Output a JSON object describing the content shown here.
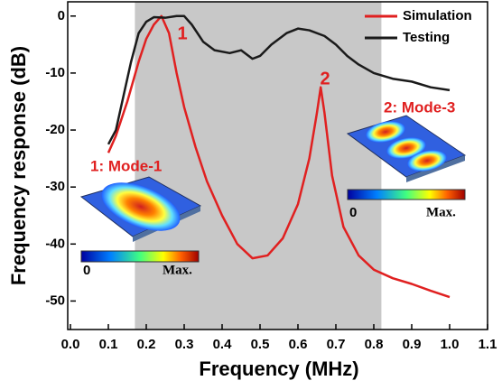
{
  "chart_data": {
    "type": "line",
    "x_label": "Frequency (MHz)",
    "y_label": "Frequency response (dB)",
    "xlim": [
      0,
      1.1
    ],
    "ylim": [
      -55,
      2.5
    ],
    "xticks": [
      {
        "value": 0,
        "label": "0.0"
      },
      0.1,
      0.2,
      0.3,
      0.4,
      0.5,
      0.6,
      0.7,
      0.8,
      0.9,
      {
        "value": 1,
        "label": "1.0"
      },
      1.1
    ],
    "yticks": [
      0,
      -10,
      -20,
      -30,
      -40,
      -50
    ],
    "shaded_region": [
      0.17,
      0.82
    ],
    "shaded_color": "#c8c8c8",
    "legend": "upper right",
    "series": [
      {
        "name": "Simulation",
        "color": "#e02020",
        "x": [
          0.1,
          0.12,
          0.15,
          0.18,
          0.2,
          0.22,
          0.24,
          0.26,
          0.28,
          0.3,
          0.33,
          0.36,
          0.4,
          0.44,
          0.48,
          0.52,
          0.56,
          0.6,
          0.63,
          0.65,
          0.66,
          0.67,
          0.69,
          0.72,
          0.76,
          0.8,
          0.85,
          0.9,
          0.95,
          1.0
        ],
        "values": [
          -24,
          -21,
          -15,
          -8,
          -4,
          -1.5,
          0,
          -3,
          -10,
          -16,
          -23,
          -29,
          -35,
          -40,
          -42.5,
          -42,
          -39,
          -33,
          -25,
          -17,
          -12.5,
          -17,
          -28,
          -37,
          -42,
          -44.5,
          -46,
          -47,
          -48.2,
          -49.3
        ]
      },
      {
        "name": "Testing",
        "color": "#1a1a1a",
        "x": [
          0.1,
          0.12,
          0.14,
          0.16,
          0.18,
          0.2,
          0.22,
          0.25,
          0.28,
          0.3,
          0.32,
          0.35,
          0.38,
          0.42,
          0.45,
          0.48,
          0.5,
          0.53,
          0.57,
          0.6,
          0.63,
          0.67,
          0.7,
          0.73,
          0.76,
          0.8,
          0.85,
          0.9,
          0.95,
          1.0
        ],
        "values": [
          -22.5,
          -20,
          -14,
          -8,
          -3,
          -1,
          -0.2,
          -0.3,
          0,
          0,
          -1.5,
          -4.5,
          -6,
          -6.5,
          -6,
          -7.5,
          -7,
          -5,
          -3,
          -2.2,
          -2.5,
          -3.5,
          -5,
          -7,
          -8.5,
          -10,
          -11,
          -11.5,
          -12.5,
          -13
        ]
      }
    ],
    "annotations": [
      {
        "text": "1"
      },
      {
        "text": "2"
      },
      {
        "text": "1: Mode-1"
      },
      {
        "text": "2: Mode-3"
      },
      {
        "text": "0"
      },
      {
        "text": "Max."
      },
      {
        "text": "0"
      },
      {
        "text": "Max."
      }
    ]
  }
}
